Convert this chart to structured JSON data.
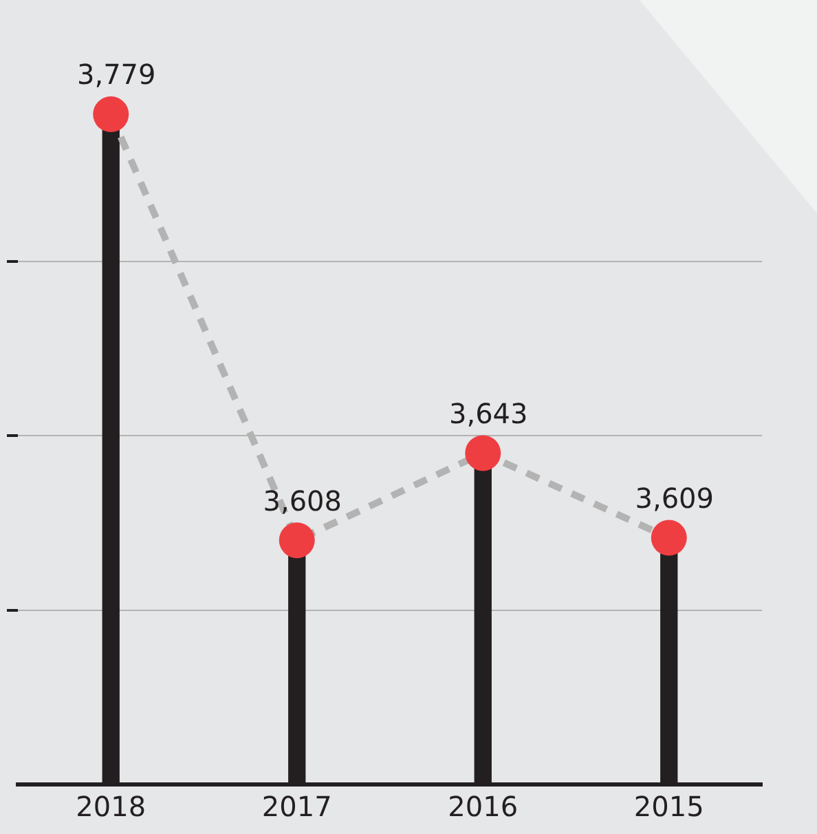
{
  "chart_data": {
    "type": "lollipop",
    "categories": [
      "2018",
      "2017",
      "2016",
      "2015"
    ],
    "series": [
      {
        "type": "bar",
        "color": "#231f20",
        "values": [
          3779,
          3608,
          3643,
          3609
        ],
        "value_labels": [
          "3,779",
          "3,608",
          "3,643",
          "3,609"
        ]
      },
      {
        "type": "line",
        "color": "#b3b3b3",
        "colors": [
          "#ef3e42",
          "#ef3e42",
          "#ef3e42",
          "#ef3e42"
        ],
        "marker": "circle",
        "line_style": "dashed",
        "values": [
          3779,
          3608,
          3643,
          3609
        ]
      }
    ],
    "yticks": [
      {
        "value": 3580,
        "label": null
      },
      {
        "value": 3650,
        "label": null
      },
      {
        "value": 3720,
        "label": null
      }
    ],
    "tick_labels": "x",
    "grid": "y",
    "legend": false
  }
}
